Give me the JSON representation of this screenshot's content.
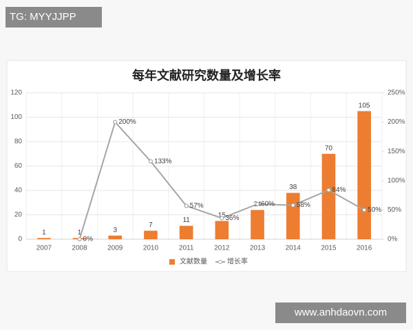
{
  "overlays": [
    "TG: MYYJJPP",
    "www.anhdaovn.com"
  ],
  "chart_data": {
    "type": "bar-line",
    "title": "每年文献研究数量及增长率",
    "categories": [
      "2007",
      "2008",
      "2009",
      "2010",
      "2011",
      "2012",
      "2013",
      "2014",
      "2015",
      "2016"
    ],
    "series": [
      {
        "name": "文献数量",
        "color": "#ed7d31",
        "values": [
          1,
          1,
          3,
          7,
          11,
          15,
          24,
          38,
          70,
          105
        ]
      },
      {
        "name": "增长率",
        "color": "#a5a5a5",
        "axis": "y2",
        "values": [
          null,
          0,
          200,
          133,
          57,
          36,
          60,
          58,
          84,
          50
        ],
        "value_labels": [
          null,
          "0%",
          "200%",
          "133%",
          "57%",
          "36%",
          "60%",
          "58%",
          "84%",
          "50%"
        ]
      }
    ],
    "ylim": [
      0,
      120
    ],
    "yticks": [
      0,
      20,
      40,
      60,
      80,
      100,
      120
    ],
    "y2lim": [
      0,
      250
    ],
    "y2ticks": [
      {
        "value": 0,
        "label": "0%"
      },
      {
        "value": 50,
        "label": "50%"
      },
      {
        "value": 100,
        "label": "100%"
      },
      {
        "value": 150,
        "label": "150%"
      },
      {
        "value": 200,
        "label": "200%"
      },
      {
        "value": 250,
        "label": "250%"
      }
    ],
    "grid": true,
    "legend": "bottom"
  }
}
